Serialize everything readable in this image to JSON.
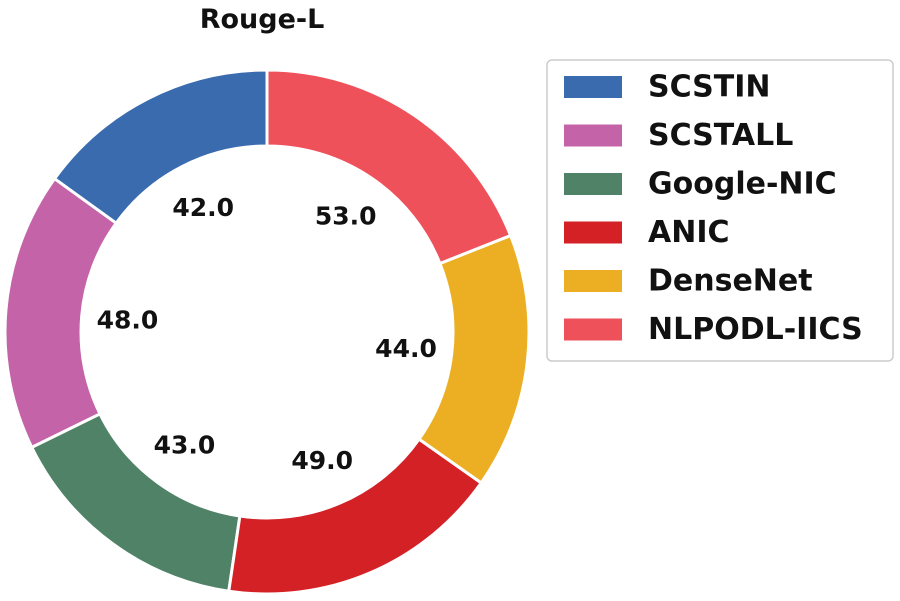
{
  "chart_data": {
    "type": "pie",
    "subtype": "donut",
    "title": "Rouge-L",
    "categories": [
      "SCSTIN",
      "SCSTALL",
      "Google-NIC",
      "ANIC",
      "DenseNet",
      "NLPODL-IICS"
    ],
    "values": [
      42.0,
      48.0,
      43.0,
      49.0,
      44.0,
      53.0
    ],
    "value_labels": [
      "42.0",
      "48.0",
      "43.0",
      "49.0",
      "44.0",
      "53.0"
    ],
    "colors": [
      "#3a6baf",
      "#c463a8",
      "#4f8266",
      "#d42126",
      "#ecaf24",
      "#ef515b"
    ],
    "legend_position": "right",
    "start": "top",
    "direction": "counter-clockwise"
  }
}
